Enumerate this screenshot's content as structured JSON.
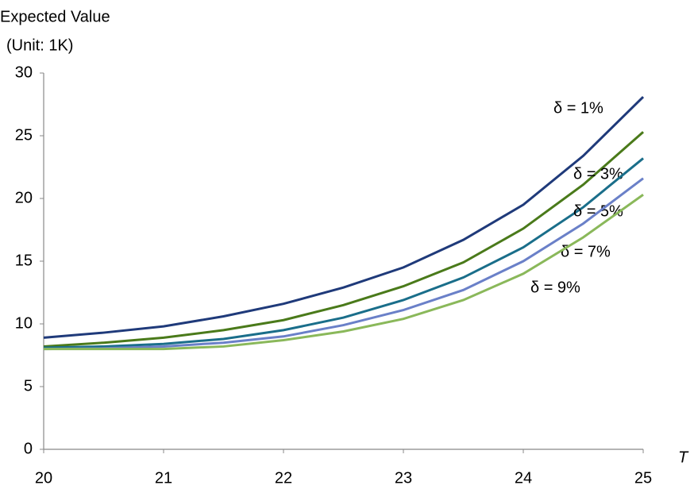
{
  "chart_data": {
    "type": "line",
    "y_label": "Expected Value",
    "y_unit": "(Unit: 1K)",
    "x_label": "T",
    "x": [
      20,
      20.5,
      21,
      21.5,
      22,
      22.5,
      23,
      23.5,
      24,
      24.5,
      25
    ],
    "series": [
      {
        "name": "δ = 1%",
        "color": "#1f3a7a",
        "values": [
          8.9,
          9.3,
          9.8,
          10.6,
          11.6,
          12.9,
          14.5,
          16.7,
          19.5,
          23.4,
          28.1
        ]
      },
      {
        "name": "δ = 3%",
        "color": "#4a7a1a",
        "values": [
          8.2,
          8.5,
          8.9,
          9.5,
          10.3,
          11.5,
          13.0,
          14.9,
          17.6,
          21.1,
          25.3
        ]
      },
      {
        "name": "δ = 5%",
        "color": "#1a6e8a",
        "values": [
          8.1,
          8.2,
          8.4,
          8.8,
          9.5,
          10.5,
          11.9,
          13.7,
          16.1,
          19.3,
          23.2
        ]
      },
      {
        "name": "δ = 7%",
        "color": "#6a80c8",
        "values": [
          8.0,
          8.05,
          8.2,
          8.5,
          9.0,
          9.9,
          11.1,
          12.7,
          15.0,
          18.0,
          21.6
        ]
      },
      {
        "name": "δ = 9%",
        "color": "#8ab85a",
        "values": [
          8.0,
          8.0,
          8.0,
          8.2,
          8.7,
          9.4,
          10.4,
          11.9,
          14.0,
          16.9,
          20.3
        ]
      }
    ],
    "xlim": [
      20,
      25
    ],
    "xticks": [
      20,
      21,
      22,
      23,
      24,
      25
    ],
    "ylim": [
      0,
      30
    ],
    "yticks": [
      0,
      5,
      10,
      15,
      20,
      25,
      30
    ],
    "grid": false
  }
}
